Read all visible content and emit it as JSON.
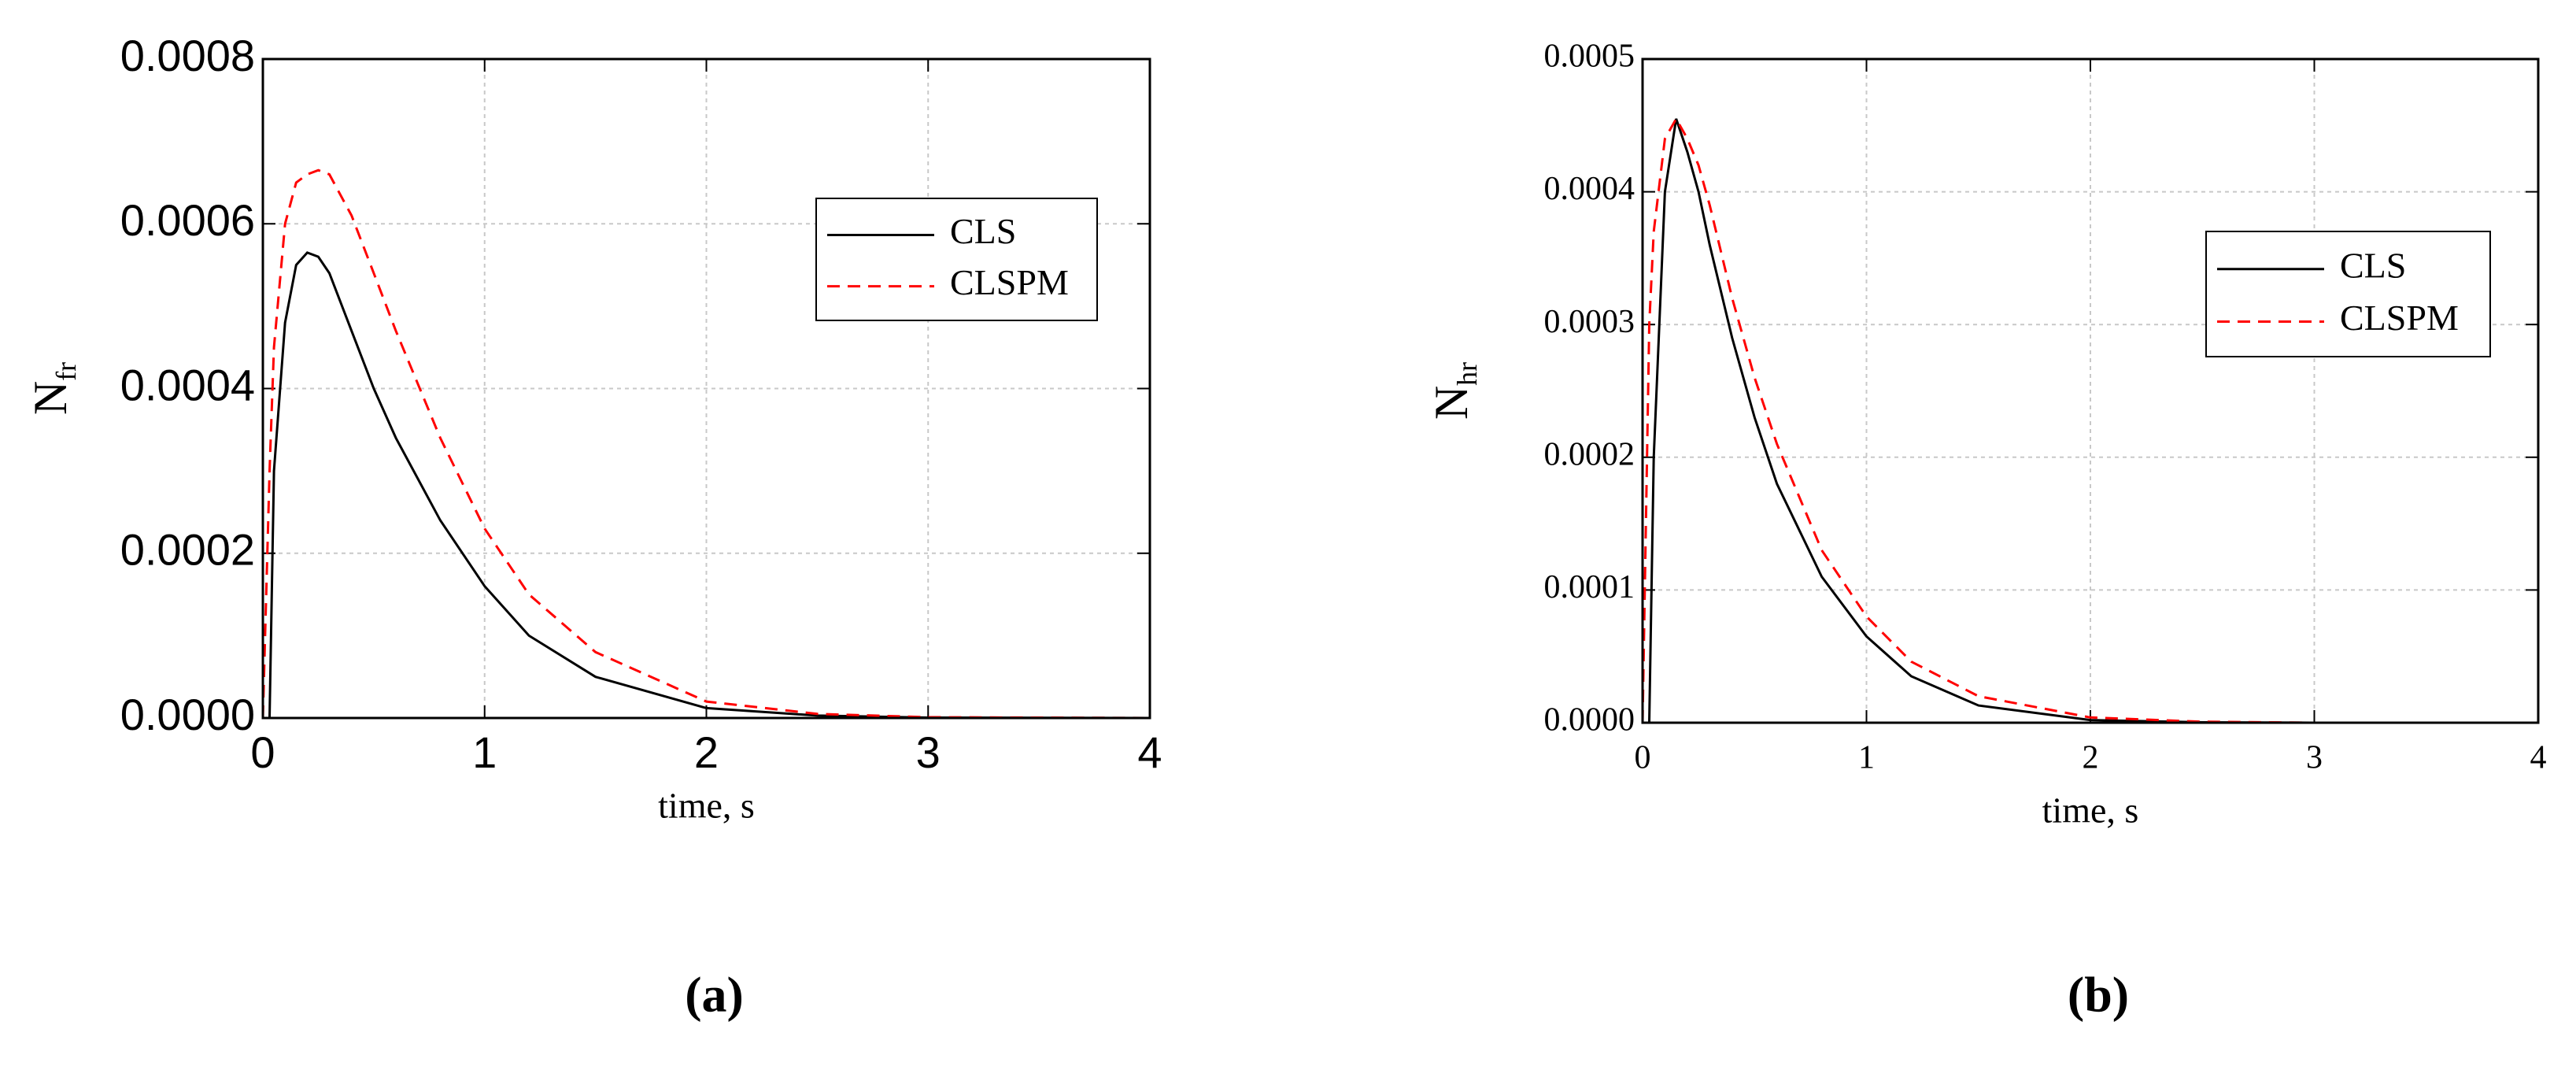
{
  "chart_data": [
    {
      "type": "line",
      "panel_label": "(a)",
      "xlabel": "time, s",
      "ylabel": "N",
      "ylabel_sub": "fr",
      "x": [
        0,
        0.03,
        0.05,
        0.1,
        0.15,
        0.2,
        0.25,
        0.3,
        0.4,
        0.5,
        0.6,
        0.8,
        1.0,
        1.2,
        1.5,
        2.0,
        2.5,
        3.0,
        4.0
      ],
      "series": [
        {
          "name": "CLS",
          "color": "#000000",
          "style": "solid",
          "values": [
            null,
            0,
            0.0003,
            0.00048,
            0.00055,
            0.000565,
            0.00056,
            0.00054,
            0.00047,
            0.0004,
            0.00034,
            0.00024,
            0.00016,
            0.0001,
            5e-05,
            1.2e-05,
            3e-06,
            5e-07,
            0
          ]
        },
        {
          "name": "CLSPM",
          "color": "#ff0000",
          "style": "dashed",
          "values": [
            0,
            0.0003,
            0.00045,
            0.0006,
            0.00065,
            0.00066,
            0.000665,
            0.00066,
            0.00061,
            0.00054,
            0.00047,
            0.00034,
            0.00023,
            0.00015,
            8e-05,
            2e-05,
            5e-06,
            1e-06,
            0
          ]
        }
      ],
      "xlim": [
        0,
        4
      ],
      "ylim": [
        0,
        0.0008
      ],
      "xticks": [
        0,
        1,
        2,
        3,
        4
      ],
      "yticks": [
        {
          "value": 0,
          "label": "0.0000"
        },
        {
          "value": 0.0002,
          "label": "0.0002"
        },
        {
          "value": 0.0004,
          "label": "0.0004"
        },
        {
          "value": 0.0006,
          "label": "0.0006"
        },
        {
          "value": 0.0008,
          "label": "0.0008"
        }
      ],
      "grid": true,
      "legend": "upper right"
    },
    {
      "type": "line",
      "panel_label": "(b)",
      "xlabel": "time, s",
      "ylabel": "N",
      "ylabel_sub": "hr",
      "x": [
        0,
        0.03,
        0.05,
        0.1,
        0.15,
        0.2,
        0.25,
        0.3,
        0.4,
        0.5,
        0.6,
        0.8,
        1.0,
        1.2,
        1.5,
        2.0,
        2.5,
        3.0,
        4.0
      ],
      "series": [
        {
          "name": "CLS",
          "color": "#000000",
          "style": "solid",
          "values": [
            null,
            0,
            0.0002,
            0.0004,
            0.000455,
            0.00043,
            0.0004,
            0.00036,
            0.00029,
            0.00023,
            0.00018,
            0.00011,
            6.5e-05,
            3.5e-05,
            1.3e-05,
            2e-06,
            3e-07,
            0,
            0
          ]
        },
        {
          "name": "CLSPM",
          "color": "#ff0000",
          "style": "dashed",
          "values": [
            0,
            0.0003,
            0.00037,
            0.00044,
            0.000455,
            0.00044,
            0.00042,
            0.00039,
            0.00032,
            0.00026,
            0.00021,
            0.00013,
            8e-05,
            4.6e-05,
            2e-05,
            4e-06,
            8e-07,
            0,
            0
          ]
        }
      ],
      "xlim": [
        0,
        4
      ],
      "ylim": [
        0,
        0.0005
      ],
      "xticks": [
        0,
        1,
        2,
        3,
        4
      ],
      "yticks": [
        {
          "value": 0,
          "label": "0.0000"
        },
        {
          "value": 0.0001,
          "label": "0.0001"
        },
        {
          "value": 0.0002,
          "label": "0.0002"
        },
        {
          "value": 0.0003,
          "label": "0.0003"
        },
        {
          "value": 0.0004,
          "label": "0.0004"
        },
        {
          "value": 0.0005,
          "label": "0.0005"
        }
      ],
      "grid": true,
      "legend": "center right"
    }
  ]
}
